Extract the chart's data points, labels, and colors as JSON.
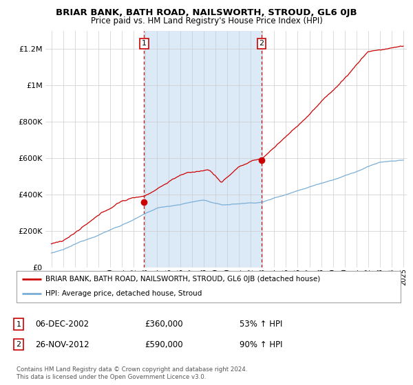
{
  "title": "BRIAR BANK, BATH ROAD, NAILSWORTH, STROUD, GL6 0JB",
  "subtitle": "Price paid vs. HM Land Registry's House Price Index (HPI)",
  "bg_color": "#ffffff",
  "shade_color": "#dce9f7",
  "grid_color": "#cccccc",
  "sale1_date": "06-DEC-2002",
  "sale1_price": 360000,
  "sale1_label": "53% ↑ HPI",
  "sale2_date": "26-NOV-2012",
  "sale2_price": 590000,
  "sale2_label": "90% ↑ HPI",
  "legend_line1": "BRIAR BANK, BATH ROAD, NAILSWORTH, STROUD, GL6 0JB (detached house)",
  "legend_line2": "HPI: Average price, detached house, Stroud",
  "footer": "Contains HM Land Registry data © Crown copyright and database right 2024.\nThis data is licensed under the Open Government Licence v3.0.",
  "red_color": "#cc0000",
  "blue_color": "#7aaed6",
  "ylim": [
    0,
    1300000
  ],
  "yticks": [
    0,
    200000,
    400000,
    600000,
    800000,
    1000000,
    1200000
  ],
  "ytick_labels": [
    "£0",
    "£200K",
    "£400K",
    "£600K",
    "£800K",
    "£1M",
    "£1.2M"
  ],
  "sale1_x": 2002.917,
  "sale2_x": 2012.917,
  "xstart": 1995,
  "xend": 2025
}
